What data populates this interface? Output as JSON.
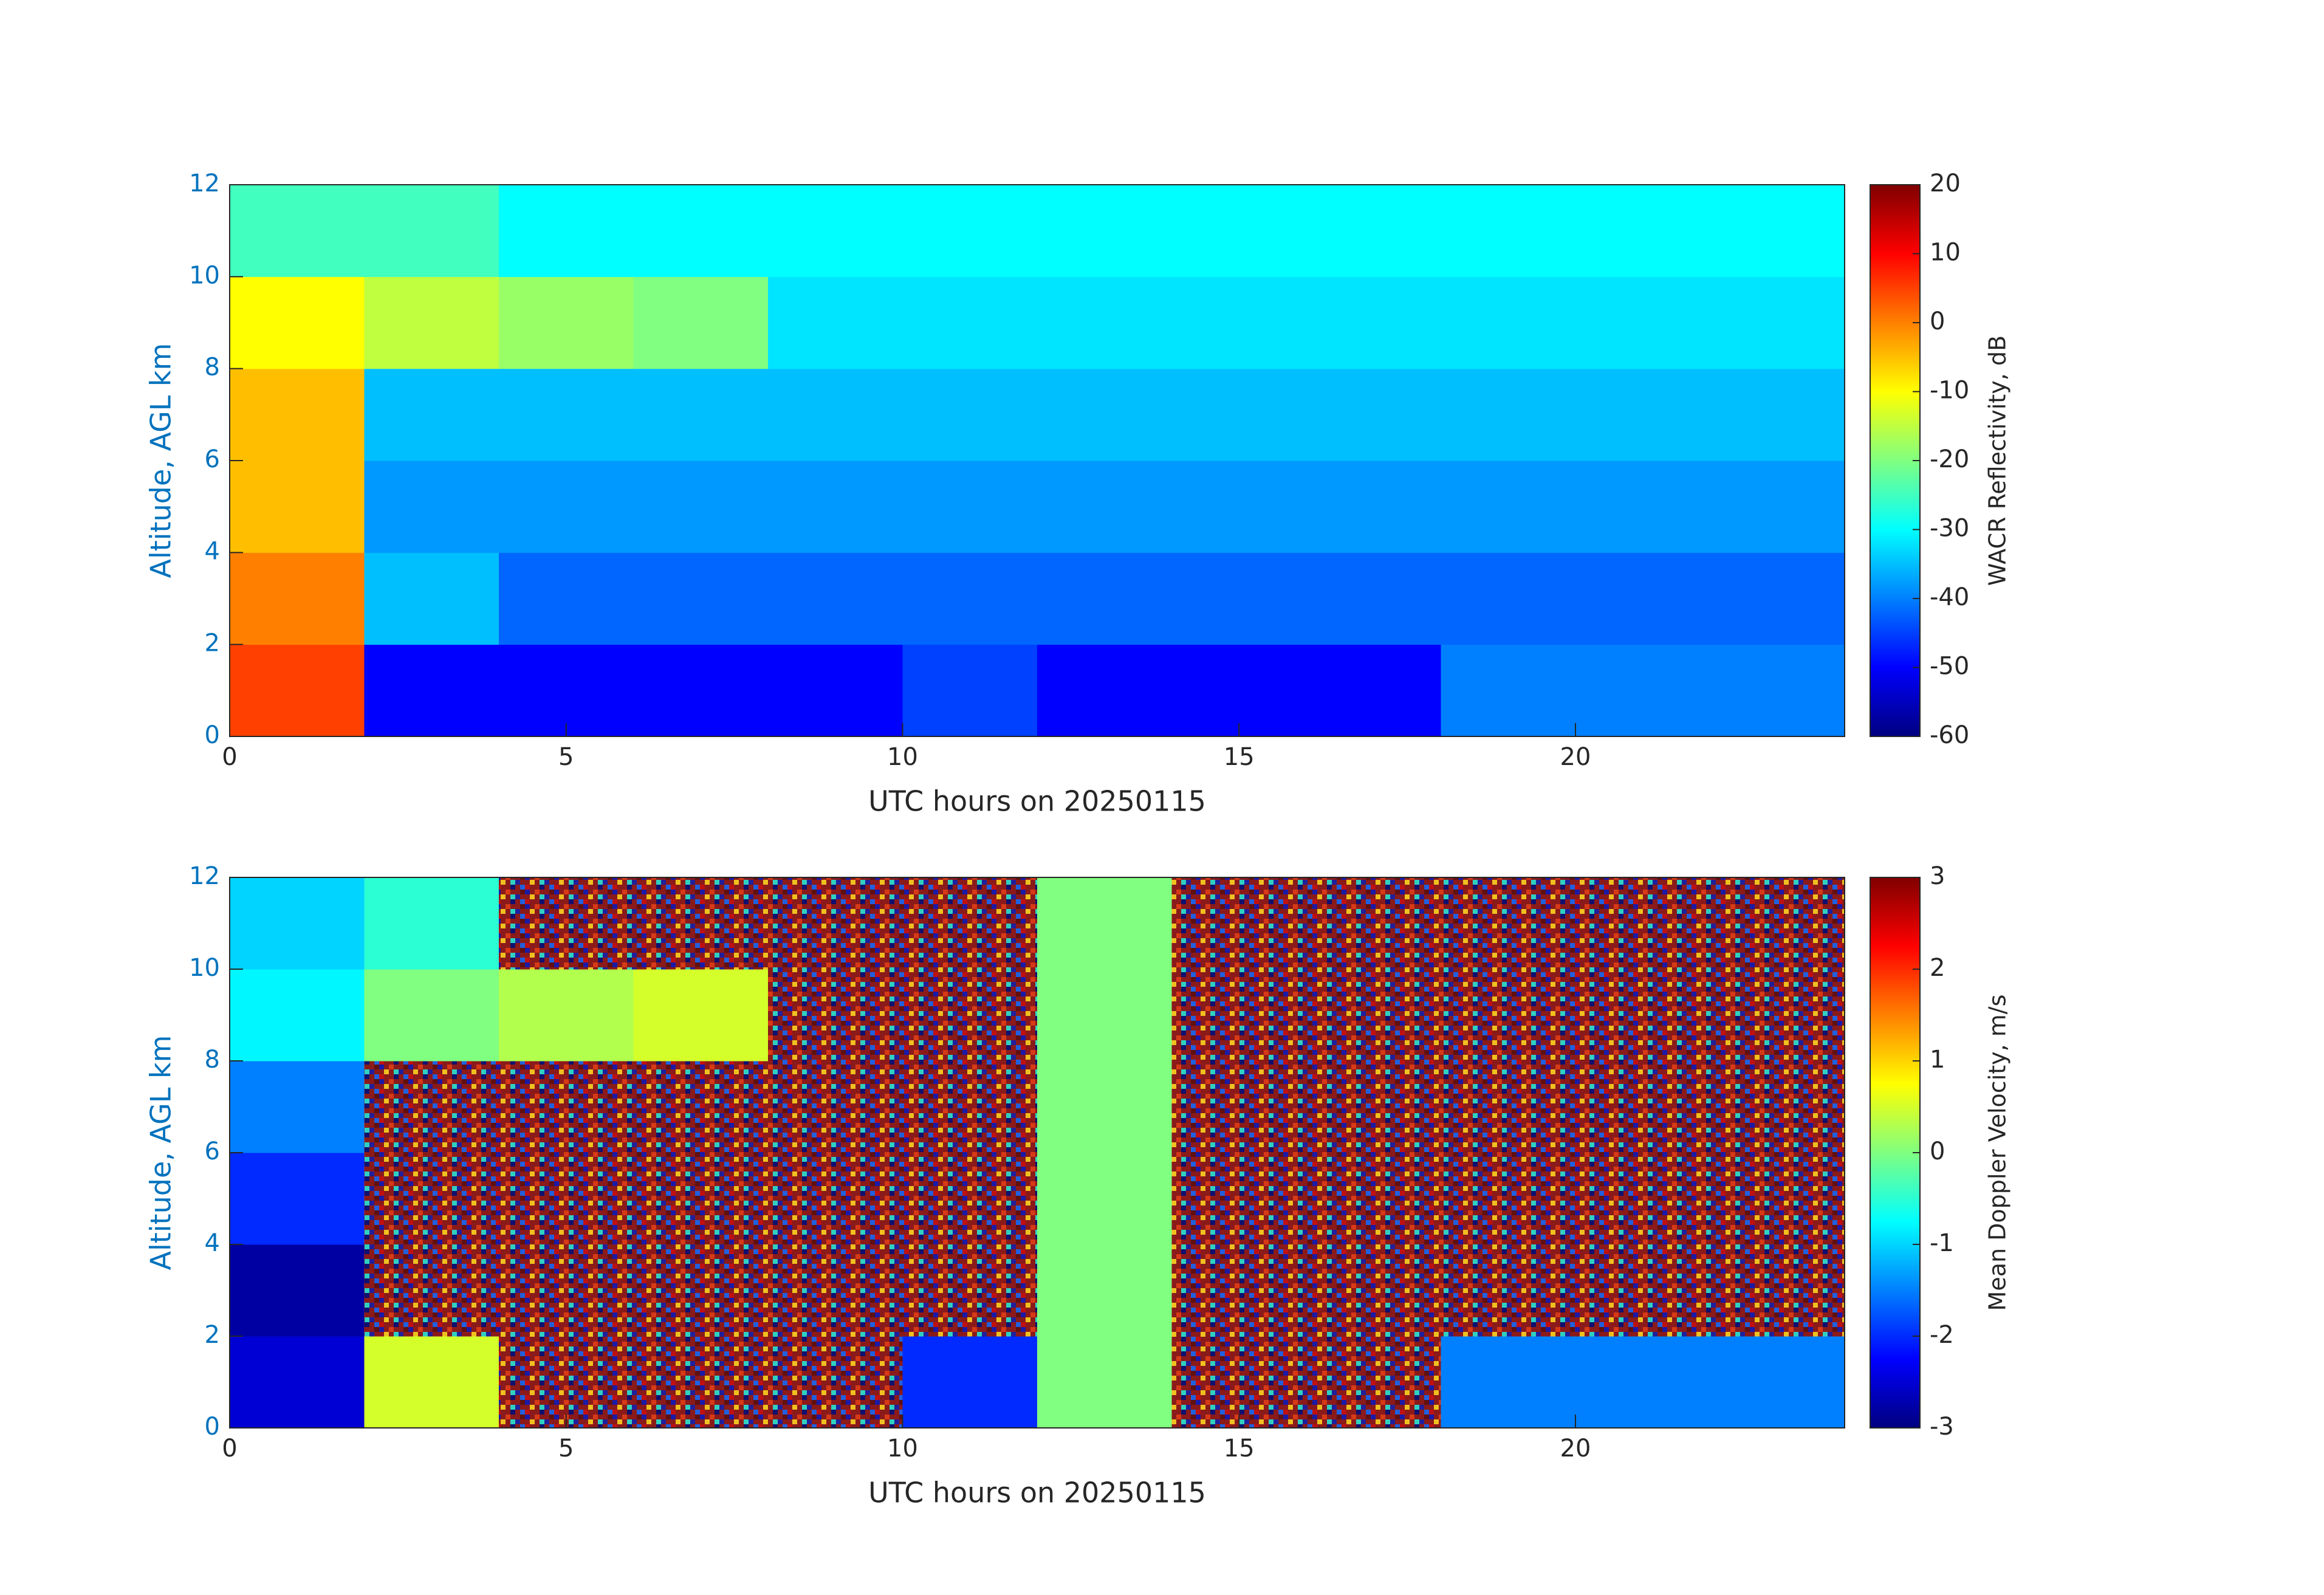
{
  "chart_data": [
    {
      "type": "heatmap",
      "xlabel": "UTC hours on 20250115",
      "ylabel": "Altitude, AGL km",
      "xlim": [
        0,
        24
      ],
      "xticks": [
        0,
        5,
        10,
        15,
        20
      ],
      "ylim": [
        0,
        12
      ],
      "yticks": [
        0,
        2,
        4,
        6,
        8,
        10,
        12
      ],
      "colormap": "jet",
      "values": [
        [
          5,
          -50,
          -50,
          -50,
          -50,
          -45,
          -50,
          -50,
          -50,
          -40,
          -40,
          -40
        ],
        [
          0,
          -35,
          -42,
          -42,
          -42,
          -42,
          -42,
          -42,
          -42,
          -42,
          -42,
          -42
        ],
        [
          -5,
          -38,
          -38,
          -38,
          -38,
          -38,
          -38,
          -38,
          -38,
          -38,
          -38,
          -38
        ],
        [
          -5,
          -35,
          -35,
          -35,
          -35,
          -35,
          -35,
          -35,
          -35,
          -35,
          -35,
          -35
        ],
        [
          -10,
          -15,
          -18,
          -20,
          -32,
          -32,
          -32,
          -32,
          -32,
          -32,
          -32,
          -32
        ],
        [
          -25,
          -25,
          -30,
          -30,
          -30,
          -30,
          -30,
          -30,
          -30,
          -30,
          -30,
          -30
        ]
      ],
      "colorbar": {
        "label": "WACR Reflectivity, dB",
        "clim": [
          -60,
          20
        ],
        "ticks": [
          -60,
          -50,
          -40,
          -30,
          -20,
          -10,
          0,
          10,
          20
        ]
      }
    },
    {
      "type": "heatmap",
      "xlabel": "UTC hours on 20250115",
      "ylabel": "Altitude, AGL km",
      "xlim": [
        0,
        24
      ],
      "xticks": [
        0,
        5,
        10,
        15,
        20
      ],
      "ylim": [
        0,
        12
      ],
      "yticks": [
        0,
        2,
        4,
        6,
        8,
        10,
        12
      ],
      "colormap": "jet",
      "values": [
        [
          -2.5,
          0.5,
          null,
          null,
          null,
          -2,
          0,
          null,
          null,
          -1.5,
          -1.5,
          -1.5
        ],
        [
          -2.8,
          null,
          null,
          null,
          null,
          null,
          0,
          null,
          null,
          null,
          null,
          null
        ],
        [
          -2,
          null,
          null,
          null,
          null,
          null,
          0,
          null,
          null,
          null,
          null,
          null
        ],
        [
          -1.5,
          null,
          null,
          null,
          null,
          null,
          0,
          null,
          null,
          null,
          null,
          null
        ],
        [
          -0.8,
          0,
          0.3,
          0.5,
          null,
          null,
          0,
          null,
          null,
          null,
          null,
          null
        ],
        [
          -1,
          -0.5,
          null,
          null,
          null,
          null,
          0,
          null,
          null,
          null,
          null,
          null
        ]
      ],
      "colorbar": {
        "label": "Mean Doppler Velocity, m/s",
        "clim": [
          -3,
          3
        ],
        "ticks": [
          -3,
          -2,
          -1,
          0,
          1,
          2,
          3
        ]
      }
    }
  ]
}
